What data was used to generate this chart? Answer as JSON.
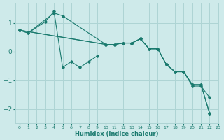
{
  "xlabel": "Humidex (Indice chaleur)",
  "xlim": [
    -0.5,
    23
  ],
  "ylim": [
    -2.5,
    1.7
  ],
  "background_color": "#ceeaea",
  "grid_color": "#aed4d4",
  "line_color": "#1a7a6e",
  "x_ticks": [
    0,
    1,
    2,
    3,
    4,
    5,
    6,
    7,
    8,
    9,
    10,
    11,
    12,
    13,
    14,
    15,
    16,
    17,
    18,
    19,
    20,
    21,
    22,
    23
  ],
  "y_ticks": [
    -2,
    -1,
    0,
    1
  ],
  "series": [
    {
      "x": [
        0,
        1,
        4,
        5,
        10,
        11,
        12,
        13,
        14,
        15,
        16,
        17,
        18,
        19,
        20,
        21,
        22
      ],
      "y": [
        0.75,
        0.65,
        1.35,
        1.25,
        0.25,
        0.25,
        0.3,
        0.3,
        0.45,
        0.1,
        0.1,
        -0.45,
        -0.7,
        -0.7,
        -1.15,
        -1.15,
        -2.15
      ]
    },
    {
      "x": [
        0,
        1,
        3,
        4,
        5,
        6,
        7,
        8,
        9
      ],
      "y": [
        0.75,
        0.65,
        1.05,
        1.4,
        -0.55,
        -0.35,
        -0.55,
        -0.35,
        -0.15
      ]
    },
    {
      "x": [
        0,
        10,
        11,
        12,
        13,
        14,
        15,
        16,
        17,
        18,
        19,
        20,
        21,
        22
      ],
      "y": [
        0.75,
        0.25,
        0.25,
        0.3,
        0.3,
        0.45,
        0.1,
        0.1,
        -0.45,
        -0.7,
        -0.7,
        -1.15,
        -1.15,
        -2.15
      ]
    },
    {
      "x": [
        0,
        10,
        11,
        12,
        13,
        14,
        15,
        16,
        17,
        18,
        19,
        20,
        21,
        22
      ],
      "y": [
        0.75,
        0.25,
        0.25,
        0.3,
        0.3,
        0.45,
        0.1,
        0.1,
        -0.45,
        -0.7,
        -0.7,
        -1.2,
        -1.2,
        -1.6
      ]
    }
  ]
}
